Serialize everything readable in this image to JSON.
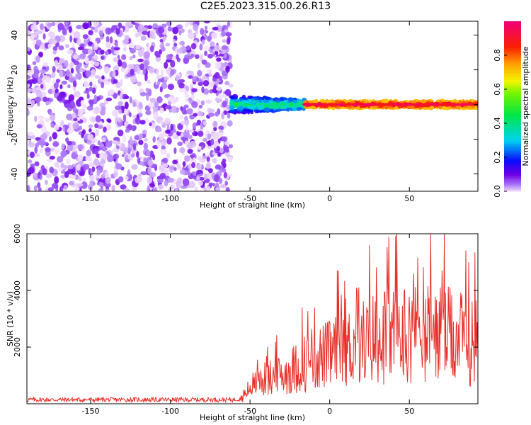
{
  "title": "C2E5.2023.315.00.26.R13",
  "chart_data": [
    {
      "type": "heatmap",
      "xlabel": "Height of straight line (km)",
      "ylabel": "Frequency (Hz)",
      "xlim": [
        -190,
        93
      ],
      "ylim": [
        -50,
        48
      ],
      "xticks": [
        -150,
        -100,
        -50,
        0,
        50
      ],
      "yticks": [
        -40,
        -20,
        0,
        20,
        40
      ],
      "colorbar": {
        "label": "Normalized spectral amplitude",
        "range": [
          0,
          1
        ],
        "ticks": [
          0.0,
          0.2,
          0.4,
          0.6,
          0.8
        ],
        "tick_labels": [
          "0.0",
          "0.2",
          "0.4",
          "0.6",
          "0.8"
        ],
        "colormap": "rainbow"
      },
      "regions": [
        {
          "x_range": [
            -190,
            -62
          ],
          "freq_range": [
            -50,
            48
          ],
          "amplitude_range": [
            0.0,
            0.1
          ],
          "pattern": "broadband noise"
        },
        {
          "x_range": [
            -62,
            -15
          ],
          "freq_center": 0,
          "freq_width": 10,
          "amplitude_range": [
            0.1,
            0.5
          ],
          "pattern": "narrowing signal band"
        },
        {
          "x_range": [
            -15,
            93
          ],
          "freq_center": 0,
          "freq_width": 4,
          "amplitude_range": [
            0.7,
            1.0
          ],
          "pattern": "strong line at 0 Hz"
        }
      ]
    },
    {
      "type": "line",
      "xlabel": "Height of straight line (km)",
      "ylabel": "SNR (10 * v/v)",
      "xlim": [
        -190,
        93
      ],
      "ylim": [
        0,
        6000
      ],
      "xticks": [
        -150,
        -100,
        -50,
        0,
        50
      ],
      "yticks": [
        2000,
        4000,
        6000
      ],
      "color": "#e8302a",
      "series": [
        {
          "x": [
            -190,
            -150,
            -100,
            -60,
            -55,
            -50,
            -45,
            -40,
            -30,
            -20,
            -10,
            0,
            10,
            20,
            30,
            40,
            50,
            60,
            70,
            80,
            90,
            93
          ],
          "y": [
            150,
            150,
            150,
            150,
            250,
            800,
            1100,
            1200,
            1400,
            1800,
            2200,
            2400,
            2700,
            3000,
            3300,
            3400,
            3500,
            3500,
            3400,
            3200,
            3000,
            3000
          ]
        }
      ]
    }
  ]
}
